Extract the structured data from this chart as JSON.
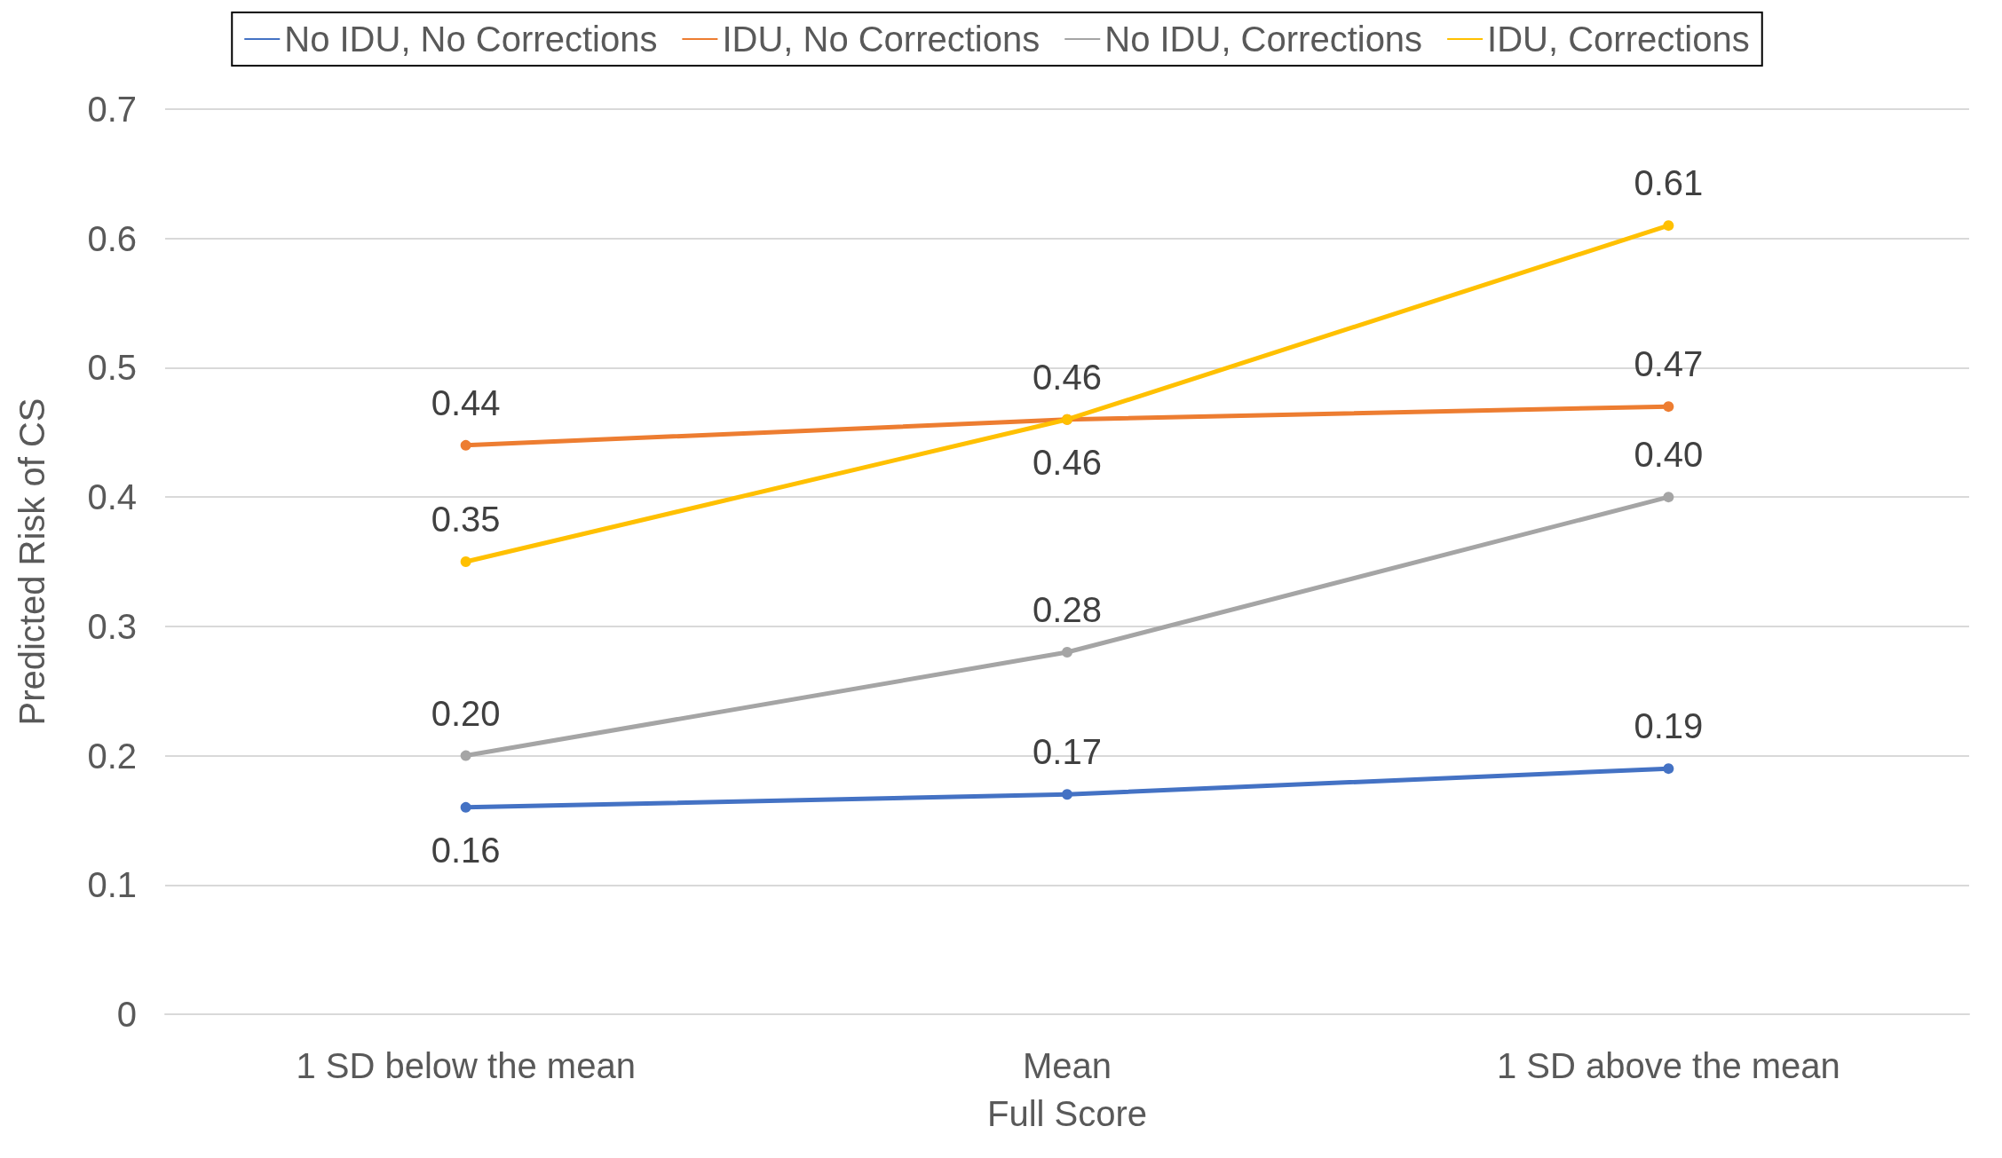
{
  "chart_data": {
    "type": "line",
    "xlabel": "Full Score",
    "ylabel": "Predicted Risk of CS",
    "categories": [
      "1 SD below the mean",
      "Mean",
      "1 SD above the mean"
    ],
    "series": [
      {
        "name": "No IDU, No Corrections",
        "color": "#4472c4",
        "values": [
          0.16,
          0.17,
          0.19
        ],
        "value_labels": [
          "0.16",
          "0.17",
          "0.19"
        ]
      },
      {
        "name": "IDU, No Corrections",
        "color": "#ed7d31",
        "values": [
          0.44,
          0.46,
          0.47
        ],
        "value_labels": [
          "0.44",
          "0.46",
          "0.47"
        ]
      },
      {
        "name": "No IDU, Corrections",
        "color": "#a5a5a5",
        "values": [
          0.2,
          0.28,
          0.4
        ],
        "value_labels": [
          "0.20",
          "0.28",
          "0.40"
        ]
      },
      {
        "name": "IDU, Corrections",
        "color": "#ffc000",
        "values": [
          0.35,
          0.46,
          0.61
        ],
        "value_labels": [
          "0.35",
          "0.46",
          "0.61"
        ]
      }
    ],
    "ylim": [
      0,
      0.7
    ],
    "yticks": [
      0,
      0.1,
      0.2,
      0.3,
      0.4,
      0.5,
      0.6,
      0.7
    ],
    "grid": "y",
    "legend": "top",
    "marker": "circle",
    "line_style": "solid"
  }
}
